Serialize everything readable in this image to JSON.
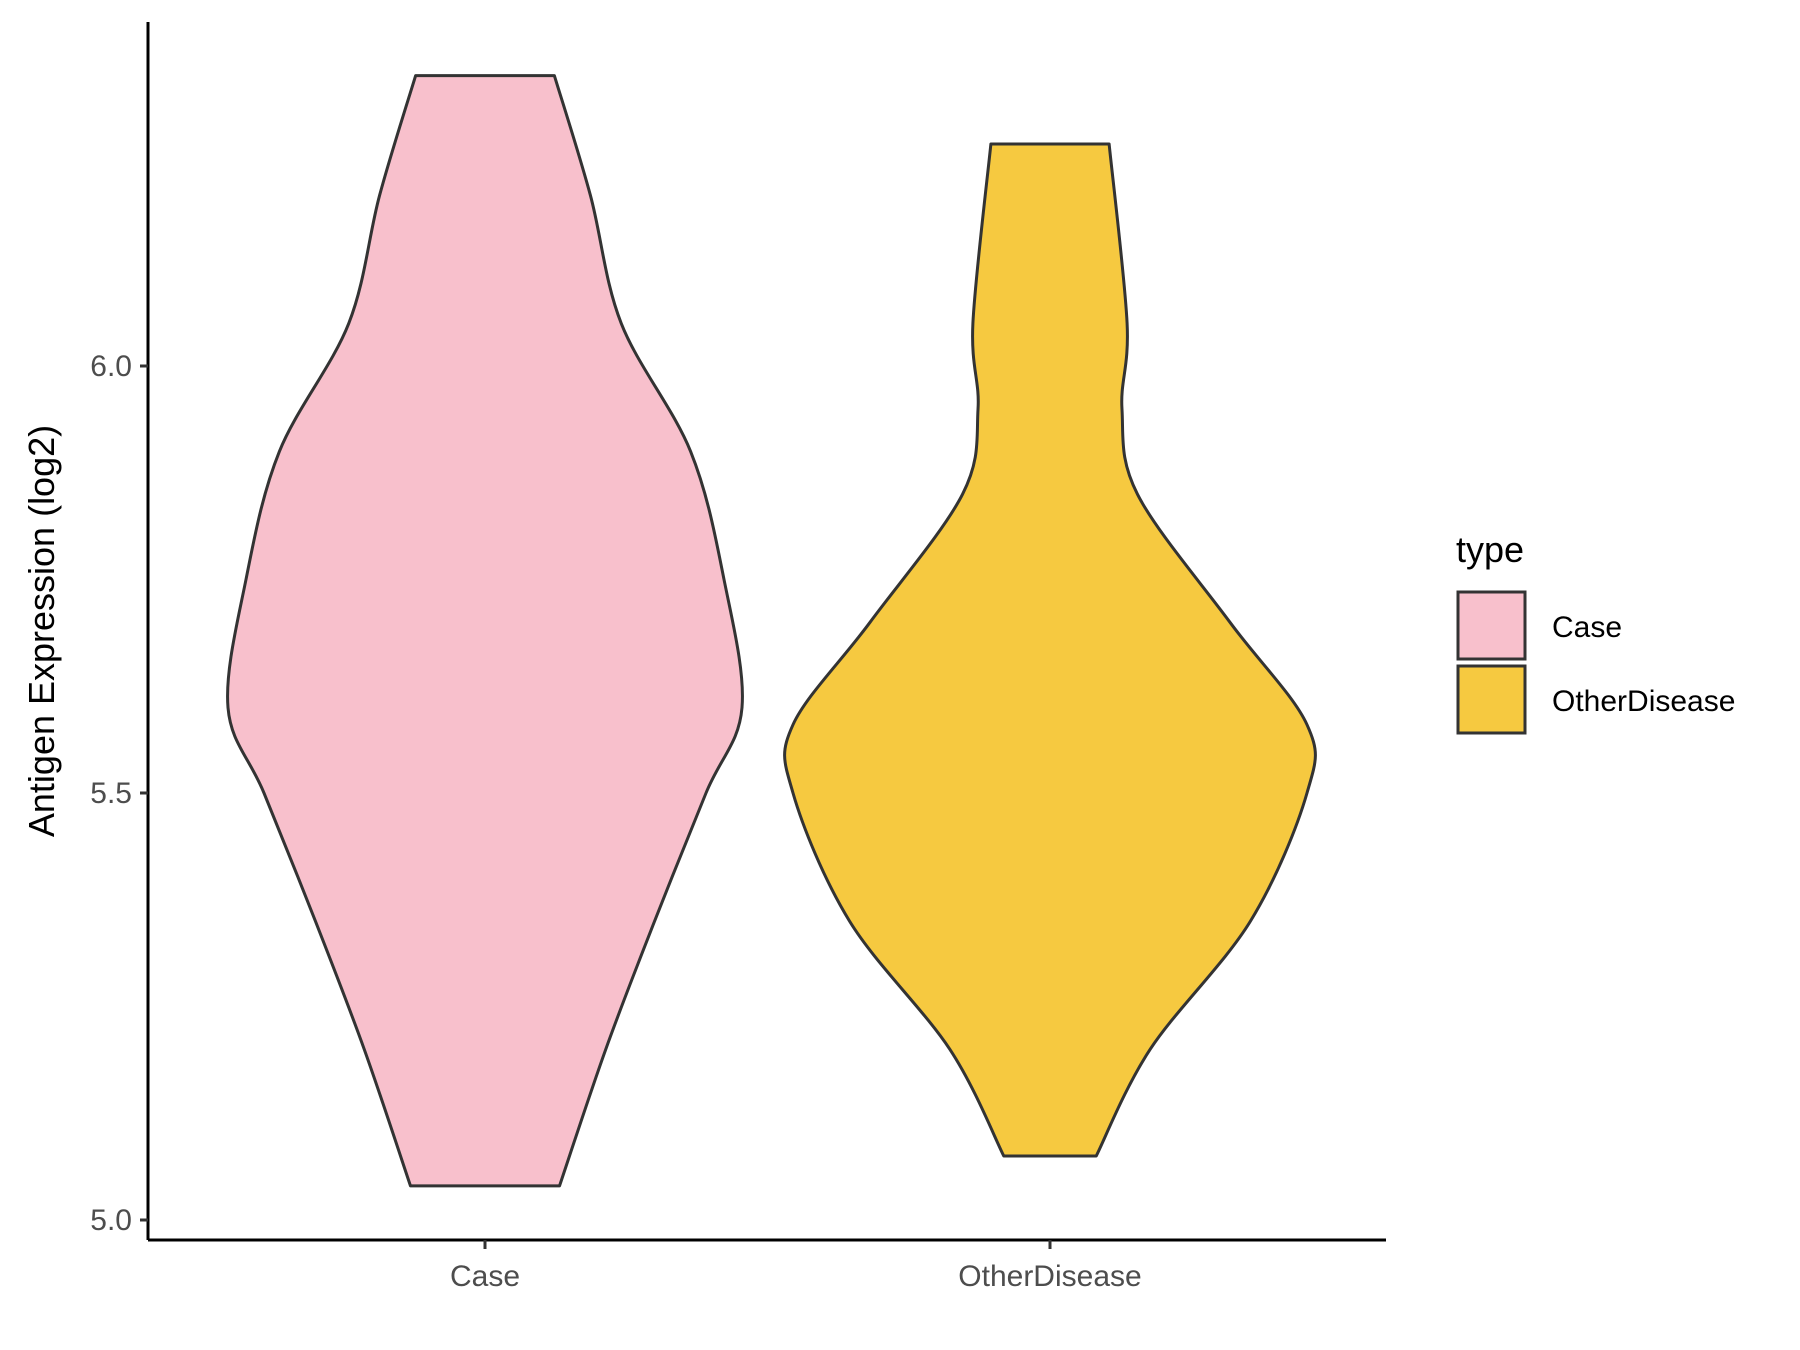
{
  "chart_data": {
    "type": "violin",
    "title": "",
    "xlabel": "",
    "ylabel": "Antigen Expression (log2)",
    "categories": [
      "Case",
      "OtherDisease"
    ],
    "ylim": [
      4.98,
      6.4
    ],
    "y_ticks": [
      "5.0",
      "5.5",
      "6.0"
    ],
    "y_tick_values": [
      5.0,
      5.5,
      6.0
    ],
    "grid": false,
    "legend": {
      "title": "type",
      "position": "right",
      "entries": [
        "Case",
        "OtherDisease"
      ]
    },
    "series": [
      {
        "name": "Case",
        "color": "#f8c0cc",
        "min": 5.04,
        "max": 6.34,
        "density_profile": [
          [
            5.04,
            0.29
          ],
          [
            5.2,
            0.47
          ],
          [
            5.35,
            0.66
          ],
          [
            5.5,
            0.86
          ],
          [
            5.6,
            1.0
          ],
          [
            5.75,
            0.93
          ],
          [
            5.9,
            0.8
          ],
          [
            6.05,
            0.53
          ],
          [
            6.2,
            0.41
          ],
          [
            6.34,
            0.27
          ]
        ]
      },
      {
        "name": "OtherDisease",
        "color": "#f6c940",
        "min": 5.075,
        "max": 6.26,
        "density_profile": [
          [
            5.075,
            0.18
          ],
          [
            5.2,
            0.39
          ],
          [
            5.35,
            0.78
          ],
          [
            5.5,
            1.0
          ],
          [
            5.58,
            1.0
          ],
          [
            5.7,
            0.7
          ],
          [
            5.85,
            0.34
          ],
          [
            5.95,
            0.28
          ],
          [
            6.05,
            0.3
          ],
          [
            6.26,
            0.23
          ]
        ]
      }
    ]
  }
}
